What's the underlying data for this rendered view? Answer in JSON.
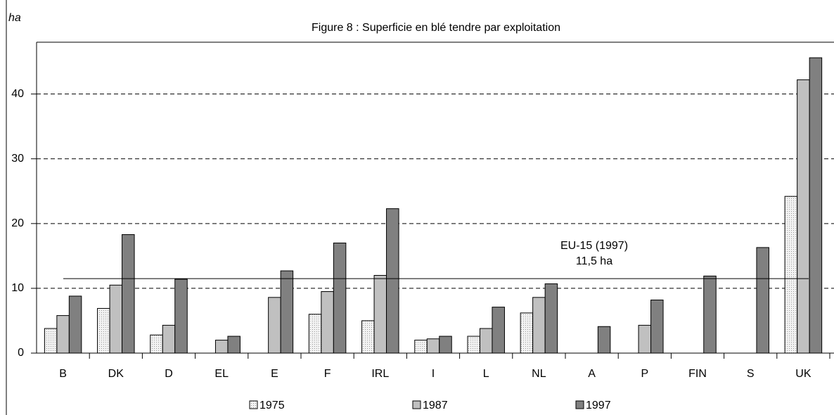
{
  "chart_data": {
    "type": "bar",
    "title": "Figure 8 : Superficie en blé tendre par exploitation",
    "y_label": "ha",
    "categories": [
      "B",
      "DK",
      "D",
      "EL",
      "E",
      "F",
      "IRL",
      "I",
      "L",
      "NL",
      "A",
      "P",
      "FIN",
      "S",
      "UK"
    ],
    "series": [
      {
        "name": "1975",
        "color": "#e6e6e6",
        "values": [
          3.8,
          6.9,
          2.8,
          null,
          null,
          6.0,
          5.0,
          2.0,
          2.6,
          6.2,
          null,
          null,
          null,
          null,
          24.2
        ]
      },
      {
        "name": "1987",
        "color": "#c0c0c0",
        "values": [
          5.8,
          10.5,
          4.3,
          2.0,
          8.6,
          9.5,
          12.0,
          2.2,
          3.8,
          8.6,
          null,
          4.3,
          null,
          null,
          42.2
        ]
      },
      {
        "name": "1997",
        "color": "#808080",
        "values": [
          8.8,
          18.3,
          11.4,
          2.6,
          12.7,
          17.0,
          22.3,
          2.6,
          7.1,
          10.7,
          4.1,
          8.2,
          11.9,
          16.3,
          45.6
        ]
      }
    ],
    "ylim": [
      0,
      48
    ],
    "yticks": [
      0,
      10,
      20,
      30,
      40
    ],
    "grid": true,
    "reference_line": {
      "value": 11.5,
      "label": "EU-15 (1997)",
      "value_label": "11,5 ha"
    },
    "legend": "bottom"
  }
}
